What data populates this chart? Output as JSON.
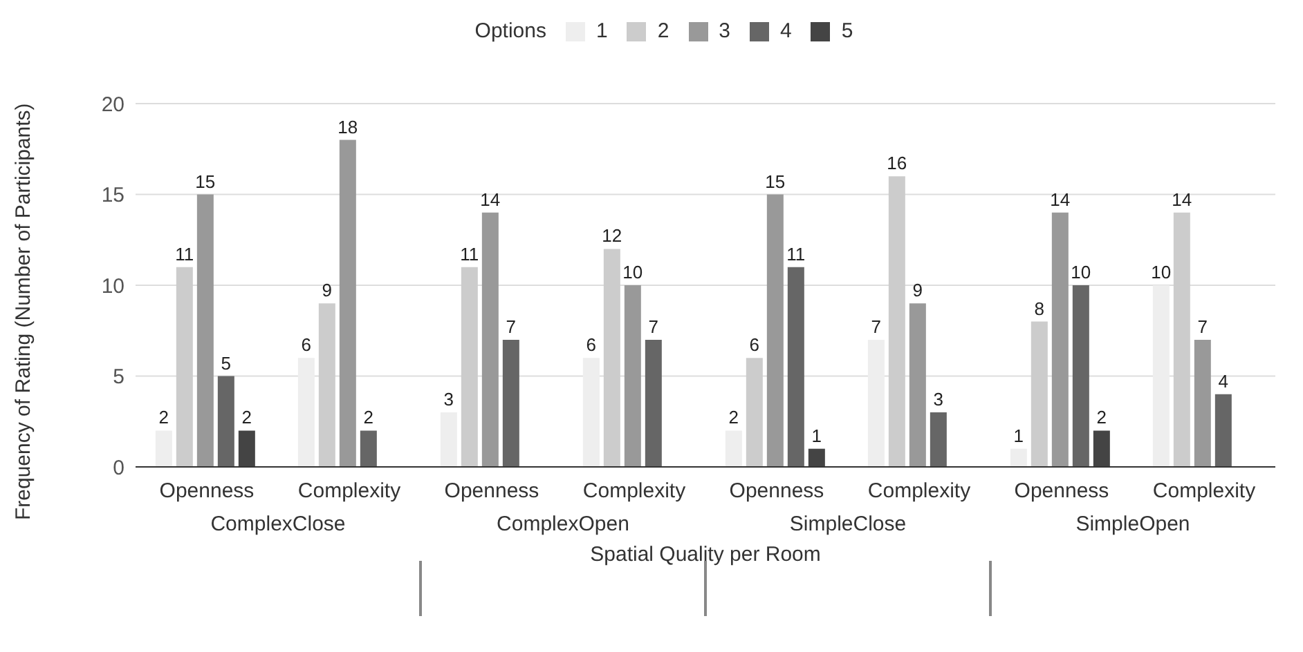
{
  "chart_data": {
    "type": "bar",
    "xlabel": "Spatial Quality per Room",
    "ylabel": "Frequency of Rating (Number of Participants)",
    "legend_title": "Options",
    "categories": [
      "Openness",
      "Complexity",
      "Openness",
      "Complexity",
      "Openness",
      "Complexity",
      "Openness",
      "Complexity"
    ],
    "annotations": [
      "ComplexClose",
      "ComplexOpen",
      "SimpleClose",
      "SimpleOpen"
    ],
    "series": [
      {
        "name": "1",
        "color": "#eeeeee",
        "values": [
          2,
          6,
          3,
          6,
          2,
          7,
          1,
          10
        ]
      },
      {
        "name": "2",
        "color": "#cccccc",
        "values": [
          11,
          9,
          11,
          12,
          6,
          16,
          8,
          14
        ]
      },
      {
        "name": "3",
        "color": "#999999",
        "values": [
          15,
          18,
          14,
          10,
          15,
          9,
          14,
          7
        ]
      },
      {
        "name": "4",
        "color": "#666666",
        "values": [
          5,
          2,
          7,
          7,
          11,
          3,
          10,
          4
        ]
      },
      {
        "name": "5",
        "color": "#444444",
        "values": [
          2,
          null,
          null,
          null,
          1,
          null,
          2,
          null
        ]
      }
    ],
    "ylim": [
      0,
      20
    ],
    "yticks": [
      0,
      5,
      10,
      15,
      20
    ],
    "grid": "y",
    "legend": "top",
    "data_labels": true
  }
}
